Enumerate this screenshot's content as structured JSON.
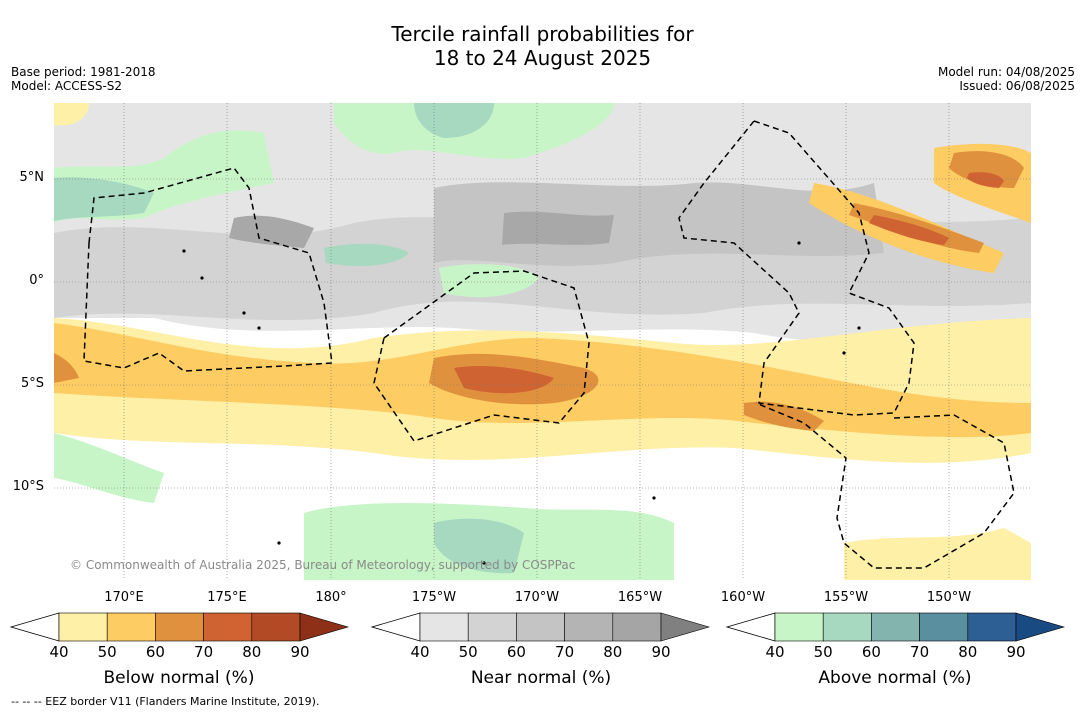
{
  "title": "Tercile rainfall probabilities for\n18 to 24 August 2025",
  "title_line1": "Tercile rainfall probabilities for",
  "title_line2": "18 to 24 August 2025",
  "base_period": "Base period: 1981-2018",
  "model": "Model: ACCESS-S2",
  "model_run": "Model run: 04/08/2025",
  "issued": "Issued: 06/08/2025",
  "lat_labels": [
    "5°N",
    "0°",
    "5°S",
    "10°S"
  ],
  "lon_labels": [
    "170°E",
    "175°E",
    "180°",
    "175°W",
    "170°W",
    "165°W",
    "160°W",
    "155°W",
    "150°W"
  ],
  "copyright": "© Commonwealth of Australia 2025, Bureau of Meteorology, supported by COSPPac",
  "eez_note": "--  --  -- EEZ border V11 (Flanders Marine Institute, 2019).",
  "colorbars": [
    {
      "title": "Below normal (%)",
      "ticks": [
        "40",
        "50",
        "60",
        "70",
        "80",
        "90"
      ],
      "colors": [
        "#fff0a8",
        "#fdcc63",
        "#e0913e",
        "#cf6432",
        "#b24a25",
        "#8e2f18"
      ]
    },
    {
      "title": "Near normal (%)",
      "ticks": [
        "40",
        "50",
        "60",
        "70",
        "80",
        "90"
      ],
      "colors": [
        "#e5e5e5",
        "#d3d3d3",
        "#c4c4c4",
        "#b4b4b4",
        "#a5a5a5",
        "#808080"
      ]
    },
    {
      "title": "Above normal (%)",
      "ticks": [
        "40",
        "50",
        "60",
        "70",
        "80",
        "90"
      ],
      "colors": [
        "#c8f5c8",
        "#a6d9bf",
        "#83b5ae",
        "#5a8fa0",
        "#2e5f94",
        "#1a4a82"
      ]
    }
  ]
}
